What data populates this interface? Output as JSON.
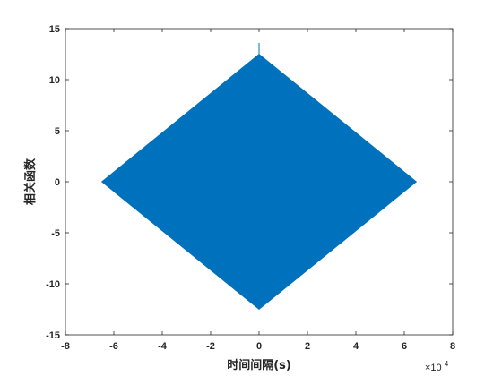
{
  "chart_data": {
    "type": "area",
    "title": "",
    "xlabel": "时间间隔(s)",
    "ylabel": "相关函数",
    "x_scale_exponent_label": {
      "base": "×10",
      "exponent": "4"
    },
    "xlim": [
      -80000,
      80000
    ],
    "ylim": [
      -15,
      15
    ],
    "x_ticks": [
      -80000,
      -60000,
      -40000,
      -20000,
      0,
      20000,
      40000,
      60000,
      80000
    ],
    "x_tick_labels": [
      "-8",
      "-6",
      "-4",
      "-2",
      "0",
      "2",
      "4",
      "6",
      "8"
    ],
    "y_ticks": [
      -15,
      -10,
      -5,
      0,
      5,
      10,
      15
    ],
    "y_tick_labels": [
      "-15",
      "-10",
      "-5",
      "0",
      "5",
      "10",
      "15"
    ],
    "grid": false,
    "series": [
      {
        "color": "#0072BD",
        "envelope_upper": {
          "x": [
            -65000,
            0,
            65000
          ],
          "y": [
            0,
            12.5,
            0
          ]
        },
        "envelope_lower": {
          "x": [
            -65000,
            0,
            65000
          ],
          "y": [
            0,
            -12.5,
            0
          ]
        },
        "peak": {
          "x": 0,
          "y": 13.6
        }
      }
    ]
  }
}
